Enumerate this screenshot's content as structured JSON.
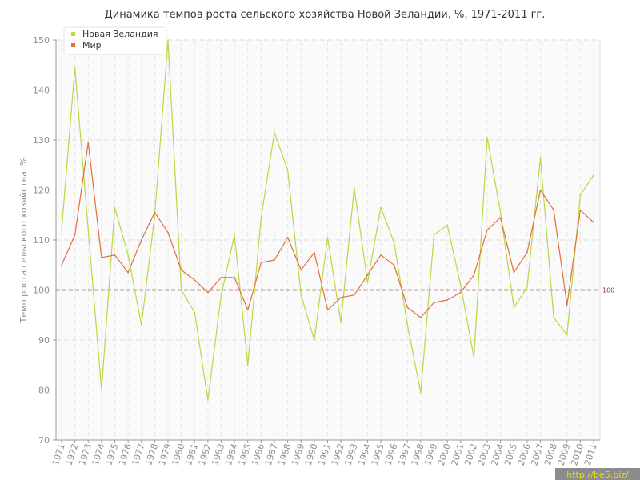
{
  "chart_data": {
    "type": "line",
    "title": "Динамика темпов роста сельского хозяйства Новой Зеландии, %, 1971-2011 гг.",
    "ylabel": "Темп роста сельского хозяйства, %",
    "xlabel": "",
    "ylim": [
      70,
      150
    ],
    "yticks": [
      70,
      80,
      90,
      100,
      110,
      120,
      130,
      140,
      150
    ],
    "grid": true,
    "legend_position": "top-left",
    "x": [
      "1971",
      "1972",
      "1973",
      "1974",
      "1975",
      "1976",
      "1977",
      "1978",
      "1979",
      "1980",
      "1981",
      "1982",
      "1983",
      "1984",
      "1985",
      "1986",
      "1987",
      "1988",
      "1989",
      "1990",
      "1991",
      "1992",
      "1993",
      "1994",
      "1995",
      "1996",
      "1997",
      "1998",
      "1999",
      "2000",
      "2001",
      "2002",
      "2003",
      "2004",
      "2005",
      "2006",
      "2007",
      "2008",
      "2009",
      "2010",
      "2011"
    ],
    "series": [
      {
        "name": "Новая Зеландия",
        "color": "#b9d840",
        "values": [
          112,
          144.5,
          112,
          80,
          116.5,
          107,
          93,
          115,
          150,
          100,
          95.5,
          78,
          99,
          111,
          85,
          114.5,
          131.5,
          124,
          99,
          90,
          110.5,
          93.5,
          120.5,
          101.5,
          116.5,
          109.5,
          93,
          79.5,
          111,
          113,
          101,
          86.5,
          130.5,
          115.5,
          96.5,
          100.5,
          126.5,
          94.5,
          91,
          119,
          123
        ]
      },
      {
        "name": "Мир",
        "color": "#e0703a",
        "values": [
          105,
          111,
          129.5,
          106.5,
          107,
          103.5,
          110,
          115.5,
          111.5,
          104,
          102,
          99.5,
          102.5,
          102.5,
          96,
          105.5,
          106,
          110.5,
          104,
          107.5,
          96,
          98.5,
          99,
          103,
          107,
          105,
          96.5,
          94.5,
          97.5,
          98,
          99.5,
          103,
          112,
          114.5,
          103.5,
          107.5,
          120,
          116,
          97,
          116,
          113.5
        ]
      }
    ],
    "reference_line": {
      "value": 100,
      "label": "100",
      "color": "#8a3a3a"
    }
  },
  "watermark": "http://be5.biz/"
}
